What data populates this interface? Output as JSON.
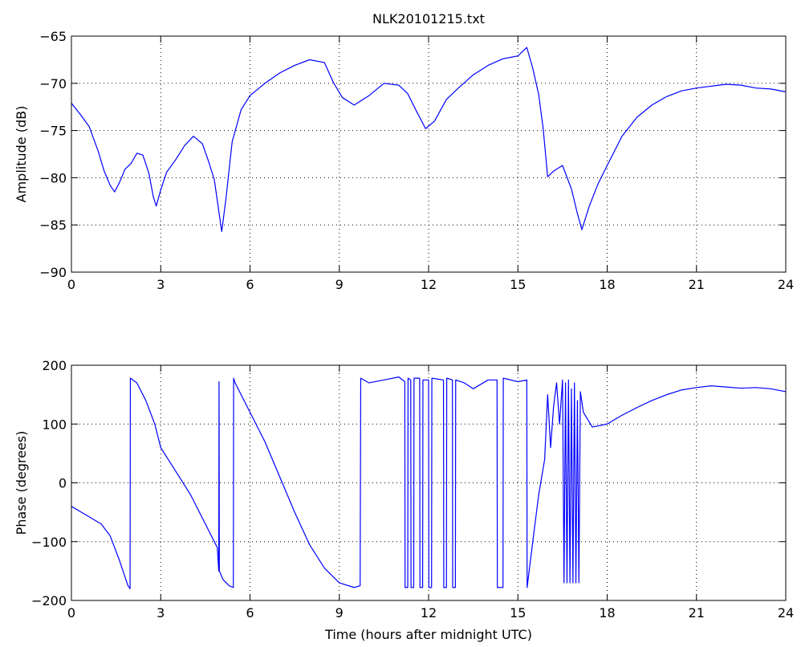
{
  "figure": {
    "background": "#ffffff",
    "line_color": "#0000ff"
  },
  "chart_data": [
    {
      "type": "line",
      "title": "NLK20101215.txt",
      "xlabel": "",
      "ylabel": "Amplitude (dB)",
      "xlim": [
        0,
        24
      ],
      "ylim": [
        -90,
        -65
      ],
      "xticks": [
        0,
        3,
        6,
        9,
        12,
        15,
        18,
        21,
        24
      ],
      "xtick_labels": [
        "0",
        "3",
        "6",
        "9",
        "12",
        "15",
        "18",
        "21",
        "24"
      ],
      "yticks": [
        -90,
        -85,
        -80,
        -75,
        -70,
        -65
      ],
      "ytick_labels": [
        "−90",
        "−85",
        "−80",
        "−75",
        "−70",
        "−65"
      ],
      "grid": true,
      "series": [
        {
          "color": "#0000ff",
          "x": [
            0,
            0.3,
            0.6,
            0.9,
            1.1,
            1.3,
            1.45,
            1.6,
            1.8,
            2.0,
            2.2,
            2.4,
            2.6,
            2.75,
            2.85,
            3.0,
            3.2,
            3.5,
            3.8,
            4.1,
            4.4,
            4.6,
            4.8,
            4.95,
            5.05,
            5.2,
            5.4,
            5.7,
            6.0,
            6.5,
            7.0,
            7.5,
            8.0,
            8.5,
            8.8,
            9.1,
            9.5,
            10.0,
            10.5,
            11.0,
            11.3,
            11.6,
            11.9,
            12.2,
            12.6,
            13.0,
            13.5,
            14.0,
            14.5,
            15.0,
            15.3,
            15.5,
            15.7,
            15.85,
            16.0,
            16.2,
            16.5,
            16.8,
            17.0,
            17.15,
            17.4,
            17.7,
            18.0,
            18.5,
            19.0,
            19.5,
            20.0,
            20.5,
            21.0,
            21.5,
            22.0,
            22.5,
            23.0,
            23.5,
            24.0
          ],
          "y": [
            -72.1,
            -73.3,
            -74.6,
            -77.2,
            -79.3,
            -80.8,
            -81.5,
            -80.6,
            -79.1,
            -78.5,
            -77.4,
            -77.6,
            -79.5,
            -82.0,
            -83.0,
            -81.3,
            -79.4,
            -78.1,
            -76.6,
            -75.6,
            -76.4,
            -78.2,
            -80.2,
            -83.5,
            -85.7,
            -82.0,
            -76.2,
            -72.8,
            -71.3,
            -70.0,
            -68.9,
            -68.1,
            -67.5,
            -67.8,
            -69.9,
            -71.5,
            -72.3,
            -71.3,
            -70.0,
            -70.2,
            -71.1,
            -73.0,
            -74.8,
            -74.0,
            -71.7,
            -70.5,
            -69.1,
            -68.1,
            -67.4,
            -67.1,
            -66.2,
            -68.4,
            -71.2,
            -74.8,
            -79.9,
            -79.3,
            -78.7,
            -81.2,
            -83.8,
            -85.5,
            -83.0,
            -80.6,
            -78.7,
            -75.6,
            -73.6,
            -72.3,
            -71.4,
            -70.8,
            -70.5,
            -70.3,
            -70.1,
            -70.2,
            -70.5,
            -70.6,
            -70.9
          ]
        }
      ]
    },
    {
      "type": "line",
      "title": "",
      "xlabel": "Time (hours after midnight UTC)",
      "ylabel": "Phase (degrees)",
      "xlim": [
        0,
        24
      ],
      "ylim": [
        -200,
        200
      ],
      "xticks": [
        0,
        3,
        6,
        9,
        12,
        15,
        18,
        21,
        24
      ],
      "xtick_labels": [
        "0",
        "3",
        "6",
        "9",
        "12",
        "15",
        "18",
        "21",
        "24"
      ],
      "yticks": [
        -200,
        -100,
        0,
        100,
        200
      ],
      "ytick_labels": [
        "−200",
        "−100",
        "0",
        "100",
        "200"
      ],
      "grid": true,
      "series": [
        {
          "color": "#0000ff",
          "x": [
            0,
            0.5,
            1.0,
            1.3,
            1.6,
            1.9,
            1.97,
            1.98,
            2.2,
            2.5,
            2.8,
            3.0,
            3.5,
            4.0,
            4.5,
            4.9,
            4.95,
            4.96,
            4.97,
            5.1,
            5.3,
            5.44,
            5.45,
            5.5,
            6.0,
            6.5,
            7.0,
            7.5,
            8.0,
            8.5,
            9.0,
            9.5,
            9.7,
            9.72,
            10.0,
            10.5,
            11.0,
            11.2,
            11.21,
            11.3,
            11.31,
            11.4,
            11.41,
            11.5,
            11.51,
            11.7,
            11.71,
            11.8,
            11.81,
            12.0,
            12.01,
            12.1,
            12.11,
            12.5,
            12.51,
            12.6,
            12.61,
            12.8,
            12.81,
            12.9,
            12.91,
            13.2,
            13.5,
            14.0,
            14.3,
            14.31,
            14.5,
            14.51,
            15.0,
            15.3,
            15.31,
            15.5,
            15.7,
            15.9,
            16.0,
            16.1,
            16.2,
            16.3,
            16.4,
            16.5,
            16.55,
            16.6,
            16.65,
            16.7,
            16.75,
            16.8,
            16.85,
            16.9,
            16.95,
            17.0,
            17.05,
            17.1,
            17.2,
            17.5,
            18.0,
            18.5,
            19.0,
            19.5,
            20.0,
            20.5,
            21.0,
            21.5,
            22.0,
            22.5,
            23.0,
            23.5,
            24.0
          ],
          "y": [
            -40,
            -55,
            -70,
            -90,
            -130,
            -175,
            -180,
            178,
            170,
            140,
            100,
            60,
            20,
            -20,
            -70,
            -110,
            -150,
            172,
            -150,
            -165,
            -175,
            -178,
            178,
            170,
            120,
            70,
            10,
            -50,
            -105,
            -145,
            -170,
            -178,
            -175,
            178,
            170,
            175,
            180,
            172,
            -178,
            -178,
            178,
            175,
            -178,
            -178,
            178,
            178,
            -178,
            -178,
            175,
            175,
            -178,
            -178,
            178,
            175,
            -178,
            -178,
            178,
            175,
            -178,
            -178,
            175,
            170,
            160,
            175,
            175,
            -178,
            -178,
            178,
            172,
            175,
            -178,
            -100,
            -20,
            40,
            150,
            60,
            130,
            170,
            100,
            175,
            -170,
            170,
            -170,
            175,
            -170,
            160,
            -170,
            170,
            -170,
            140,
            -170,
            155,
            120,
            95,
            100,
            115,
            128,
            140,
            150,
            158,
            162,
            165,
            163,
            161,
            162,
            160,
            155
          ]
        }
      ]
    }
  ]
}
